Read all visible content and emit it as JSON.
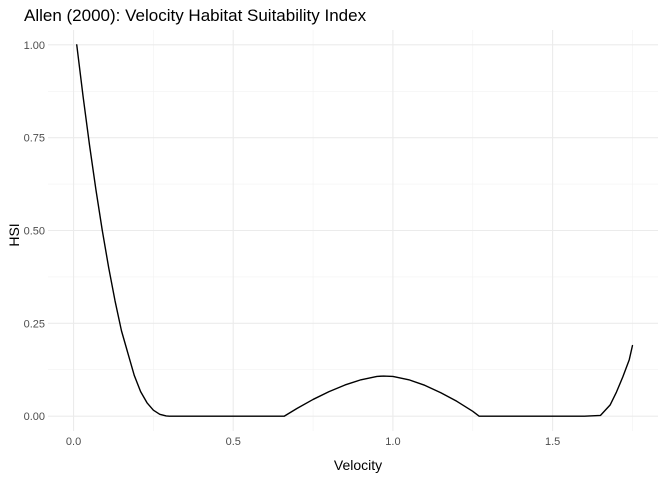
{
  "chart_data": {
    "type": "line",
    "title": "Allen (2000): Velocity Habitat Suitability Index",
    "xlabel": "Velocity",
    "ylabel": "HSI",
    "xlim": [
      -0.08,
      1.83
    ],
    "ylim": [
      -0.04,
      1.04
    ],
    "x_ticks": [
      0.0,
      0.5,
      1.0,
      1.5
    ],
    "x_tick_labels": [
      "0.0",
      "0.5",
      "1.0",
      "1.5"
    ],
    "x_minor_ticks": [
      0.25,
      0.75,
      1.25,
      1.75
    ],
    "y_ticks": [
      0.0,
      0.25,
      0.5,
      0.75,
      1.0
    ],
    "y_tick_labels": [
      "0.00",
      "0.25",
      "0.50",
      "0.75",
      "1.00"
    ],
    "y_minor_ticks": [
      0.125,
      0.375,
      0.625,
      0.875
    ],
    "grid": true,
    "legend": "none",
    "colors": {
      "line": "#000000",
      "grid_major": "#ebebeb",
      "grid_minor": "#f2f2f2",
      "background": "#ffffff"
    },
    "series": [
      {
        "x": [
          0.01,
          0.03,
          0.05,
          0.07,
          0.09,
          0.11,
          0.13,
          0.15,
          0.17,
          0.19,
          0.21,
          0.23,
          0.25,
          0.27,
          0.29,
          0.3,
          0.35,
          0.4,
          0.5,
          0.6,
          0.66,
          0.7,
          0.75,
          0.8,
          0.85,
          0.9,
          0.95,
          0.97,
          1.0,
          1.05,
          1.1,
          1.15,
          1.2,
          1.25,
          1.27,
          1.3,
          1.4,
          1.5,
          1.6,
          1.65,
          1.68,
          1.7,
          1.72,
          1.74,
          1.75
        ],
        "y": [
          1.0,
          0.86,
          0.73,
          0.61,
          0.5,
          0.4,
          0.31,
          0.23,
          0.17,
          0.11,
          0.066,
          0.036,
          0.016,
          0.005,
          0.0005,
          0.0,
          0.0,
          0.0,
          0.0,
          0.0,
          0.0,
          0.021,
          0.045,
          0.066,
          0.084,
          0.098,
          0.107,
          0.108,
          0.107,
          0.098,
          0.083,
          0.063,
          0.04,
          0.013,
          0.0,
          0.0,
          0.0,
          0.0,
          0.0,
          0.002,
          0.03,
          0.065,
          0.106,
          0.152,
          0.19
        ]
      }
    ]
  }
}
